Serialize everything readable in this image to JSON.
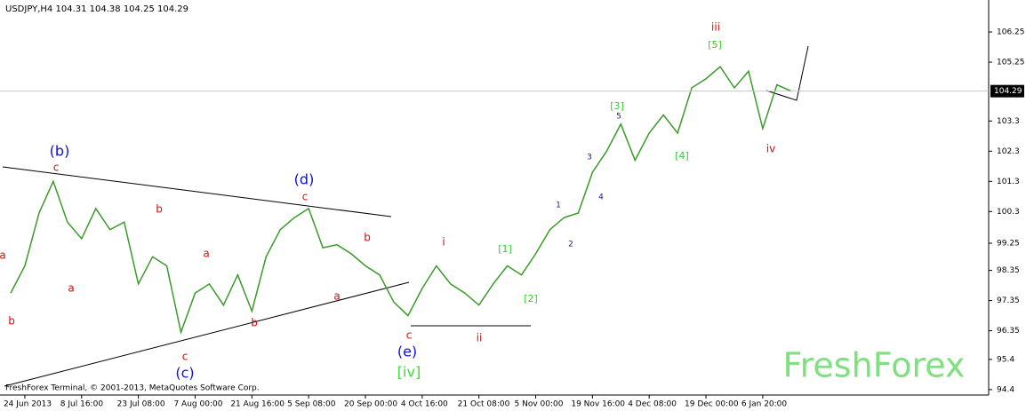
{
  "chart_data": {
    "type": "line",
    "title": "USDJPY,H4  104.31 104.38 104.25 104.29",
    "footer": "FreshForex Terminal, © 2001-2013, MetaQuotes Software Corp.",
    "watermark": "FreshForex",
    "categories": [
      null,
      "24 Jun 2013",
      null,
      null,
      null,
      "8 Jul 16:00",
      null,
      null,
      null,
      "23 Jul 08:00",
      null,
      null,
      null,
      "7 Aug 00:00",
      null,
      null,
      null,
      "21 Aug 16:00",
      null,
      null,
      null,
      "5 Sep 08:00",
      null,
      null,
      null,
      "20 Sep 00:00",
      null,
      null,
      null,
      "4 Oct 16:00",
      null,
      null,
      null,
      "21 Oct 08:00",
      null,
      null,
      null,
      "5 Nov 00:00",
      null,
      null,
      null,
      "19 Nov 16:00",
      null,
      null,
      null,
      "4 Dec 08:00",
      null,
      null,
      null,
      "19 Dec 00:00",
      null,
      null,
      null,
      "6 Jan 20:00",
      null,
      null
    ],
    "series": [
      {
        "name": "USDJPY",
        "color": "#3a9a2a",
        "values": [
          97.6,
          98.5,
          100.25,
          101.3,
          99.95,
          99.4,
          100.4,
          99.7,
          99.95,
          97.9,
          98.8,
          98.5,
          96.3,
          97.6,
          97.9,
          97.2,
          98.2,
          97.0,
          98.8,
          99.7,
          100.1,
          100.4,
          99.1,
          99.2,
          98.9,
          98.5,
          98.2,
          97.3,
          96.85,
          97.75,
          98.5,
          97.9,
          97.6,
          97.2,
          97.9,
          98.5,
          98.2,
          98.9,
          99.7,
          100.1,
          100.25,
          101.6,
          102.3,
          103.2,
          102.0,
          102.9,
          103.5,
          102.9,
          104.4,
          104.7,
          105.1,
          104.4,
          104.95,
          103.05,
          104.5,
          104.29
        ]
      }
    ],
    "ylim": [
      94.22,
      107.31
    ],
    "yticks": [
      106.25,
      105.25,
      103.3,
      102.3,
      101.3,
      100.3,
      99.25,
      98.35,
      97.35,
      96.35,
      95.4,
      94.4
    ],
    "price_line": 104.29,
    "annotations": [
      {
        "text": "(b)",
        "color": "#1010d0"
      },
      {
        "text": "c",
        "color": "#d01010"
      },
      {
        "text": "a",
        "color": "#d01010"
      },
      {
        "text": "b",
        "color": "#d01010"
      },
      {
        "text": "a",
        "color": "#d01010"
      },
      {
        "text": "b",
        "color": "#d01010"
      },
      {
        "text": "c",
        "color": "#d01010"
      },
      {
        "text": "(c)",
        "color": "#1010d0"
      },
      {
        "text": "a",
        "color": "#d01010"
      },
      {
        "text": "b",
        "color": "#d01010"
      },
      {
        "text": "(d)",
        "color": "#1010d0"
      },
      {
        "text": "c",
        "color": "#d01010"
      },
      {
        "text": "a",
        "color": "#d01010"
      },
      {
        "text": "b",
        "color": "#d01010"
      },
      {
        "text": "c",
        "color": "#d01010"
      },
      {
        "text": "(e)",
        "color": "#1010d0"
      },
      {
        "text": "[iv]",
        "color": "#33dd33"
      },
      {
        "text": "i",
        "color": "#d01010"
      },
      {
        "text": "ii",
        "color": "#d01010"
      },
      {
        "text": "[1]",
        "color": "#33cc33"
      },
      {
        "text": "[2]",
        "color": "#33cc33"
      },
      {
        "text": "1",
        "color": "#1a1a80"
      },
      {
        "text": "2",
        "color": "#1a1a80"
      },
      {
        "text": "3",
        "color": "#1a1a80"
      },
      {
        "text": "4",
        "color": "#1a1a80"
      },
      {
        "text": "[3]",
        "color": "#33cc33"
      },
      {
        "text": "5",
        "color": "#1a1a80"
      },
      {
        "text": "[4]",
        "color": "#33cc33"
      },
      {
        "text": "[5]",
        "color": "#33cc33"
      },
      {
        "text": "iii",
        "color": "#d01010"
      },
      {
        "text": "iv",
        "color": "#d01010"
      }
    ]
  }
}
